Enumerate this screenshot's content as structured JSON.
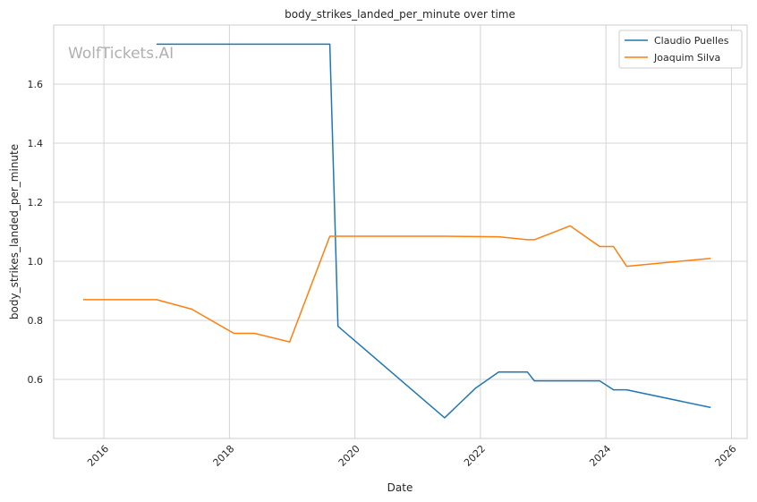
{
  "chart_data": {
    "type": "line",
    "title": "body_strikes_landed_per_minute over time",
    "xlabel": "Date",
    "ylabel": "body_strikes_landed_per_minute",
    "watermark": "WolfTickets.AI",
    "xlim": [
      2015.2,
      2026.25
    ],
    "ylim": [
      0.4,
      1.8
    ],
    "x_ticks": [
      2016,
      2018,
      2020,
      2022,
      2024,
      2026
    ],
    "x_tick_labels": [
      "2016",
      "2018",
      "2020",
      "2022",
      "2024",
      "2026"
    ],
    "y_ticks": [
      0.6,
      0.8,
      1.0,
      1.2,
      1.4,
      1.6
    ],
    "y_tick_labels": [
      "0.6",
      "0.8",
      "1.0",
      "1.2",
      "1.4",
      "1.6"
    ],
    "grid": true,
    "legend_position": "top-right",
    "series": [
      {
        "name": "Claudio Puelles",
        "color": "#1f77b4",
        "x": [
          2016.84,
          2019.6,
          2019.73,
          2021.43,
          2021.92,
          2022.29,
          2022.75,
          2022.86,
          2023.9,
          2024.12,
          2024.33,
          2025.67
        ],
        "y": [
          1.735,
          1.735,
          0.78,
          0.47,
          0.57,
          0.625,
          0.625,
          0.595,
          0.595,
          0.565,
          0.565,
          0.505
        ]
      },
      {
        "name": "Joaquim Silva",
        "color": "#ff7f0e",
        "x": [
          2015.67,
          2016.84,
          2017.4,
          2018.07,
          2018.4,
          2018.96,
          2019.6,
          2021.43,
          2022.29,
          2022.75,
          2022.86,
          2023.43,
          2023.9,
          2024.12,
          2024.33,
          2025.67
        ],
        "y": [
          0.87,
          0.87,
          0.838,
          0.756,
          0.756,
          0.727,
          1.085,
          1.085,
          1.083,
          1.073,
          1.073,
          1.12,
          1.05,
          1.05,
          0.983,
          1.01
        ]
      }
    ]
  }
}
